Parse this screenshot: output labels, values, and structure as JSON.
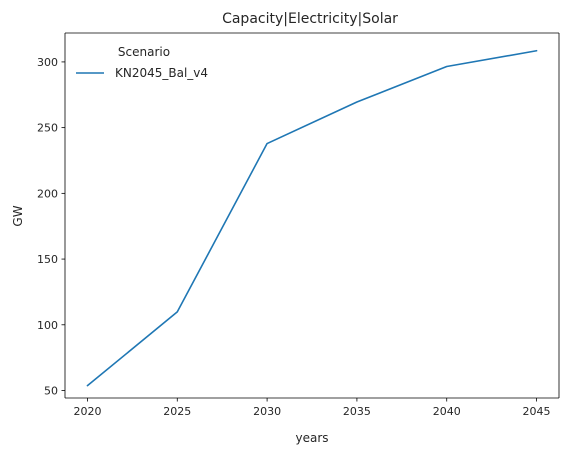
{
  "chart_data": {
    "type": "line",
    "title": "Capacity|Electricity|Solar",
    "xlabel": "years",
    "ylabel": "GW",
    "xlim": [
      2018.75,
      2046.25
    ],
    "ylim": [
      44.3,
      322
    ],
    "x_ticks": [
      2020,
      2025,
      2030,
      2035,
      2040,
      2045
    ],
    "y_ticks": [
      50,
      100,
      150,
      200,
      250,
      300
    ],
    "grid": false,
    "legend": {
      "title": "Scenario",
      "placement": "top-left",
      "entries": [
        {
          "name": "KN2045_Bal_v4",
          "color": "#1f77b4"
        }
      ]
    },
    "series": [
      {
        "name": "KN2045_Bal_v4",
        "color": "#1f77b4",
        "x": [
          2020,
          2025,
          2030,
          2035,
          2040,
          2045
        ],
        "y": [
          53.7,
          109.8,
          237.9,
          269.5,
          296.5,
          308.5
        ]
      }
    ]
  }
}
